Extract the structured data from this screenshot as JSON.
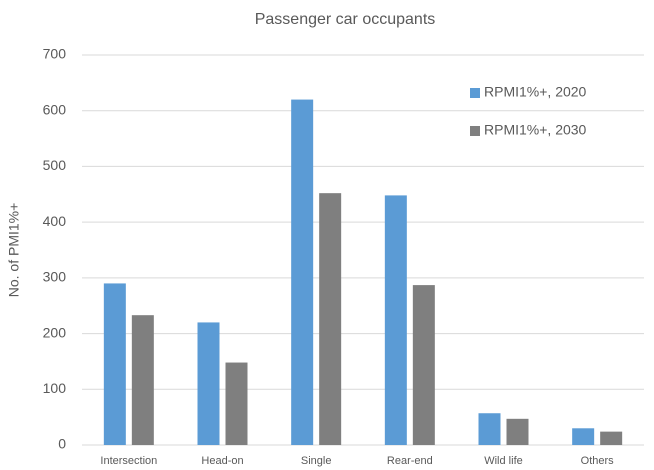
{
  "chart_data": {
    "type": "bar",
    "title": "Passenger car occupants",
    "y_label": "No. of PMI1%+",
    "categories": [
      "Intersection",
      "Head-on",
      "Single",
      "Rear-end",
      "Wild life",
      "Others"
    ],
    "series": [
      {
        "name": "RPMI1%+, 2020",
        "color": "#5b9bd5",
        "values": [
          290,
          220,
          620,
          448,
          57,
          30
        ]
      },
      {
        "name": "RPMI1%+, 2030",
        "color": "#7f7f7f",
        "values": [
          233,
          148,
          452,
          287,
          47,
          24
        ]
      }
    ],
    "ylim": [
      0,
      700
    ],
    "yticks": [
      0,
      100,
      200,
      300,
      400,
      500,
      600,
      700
    ],
    "grid": true,
    "legend": "right"
  }
}
